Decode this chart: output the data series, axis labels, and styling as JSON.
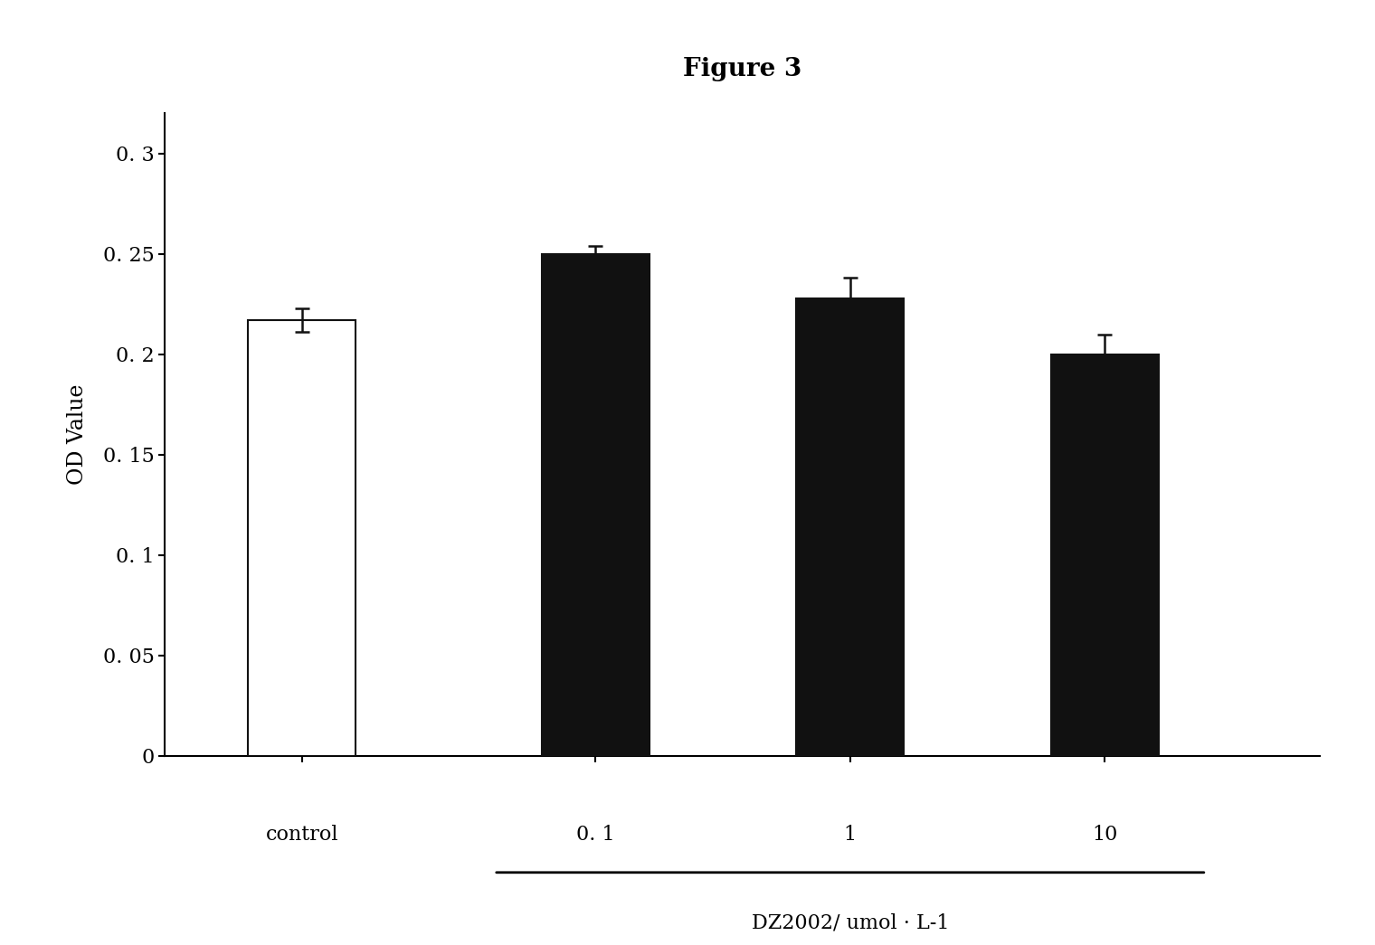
{
  "title": "Figure 3",
  "categories": [
    "control",
    "0. 1",
    "1",
    "10"
  ],
  "values": [
    0.217,
    0.25,
    0.228,
    0.2
  ],
  "errors": [
    0.006,
    0.004,
    0.01,
    0.01
  ],
  "bar_colors": [
    "#ffffff",
    "#111111",
    "#111111",
    "#111111"
  ],
  "bar_edgecolors": [
    "#111111",
    "#111111",
    "#111111",
    "#111111"
  ],
  "ylabel": "OD Value",
  "xlabel_main": "DZ2002/ umol · L-1",
  "ylim": [
    0,
    0.32
  ],
  "yticks": [
    0,
    0.05,
    0.1,
    0.15,
    0.2,
    0.25,
    0.3
  ],
  "ytick_labels": [
    "0",
    "0. 05",
    "0. 1",
    "0. 15",
    "0. 2",
    "0. 25",
    "0. 3"
  ],
  "background_color": "#ffffff",
  "title_fontsize": 20,
  "axis_fontsize": 17,
  "tick_fontsize": 16,
  "bar_width": 0.55,
  "bar_positions": [
    1,
    2.5,
    3.8,
    5.1
  ]
}
